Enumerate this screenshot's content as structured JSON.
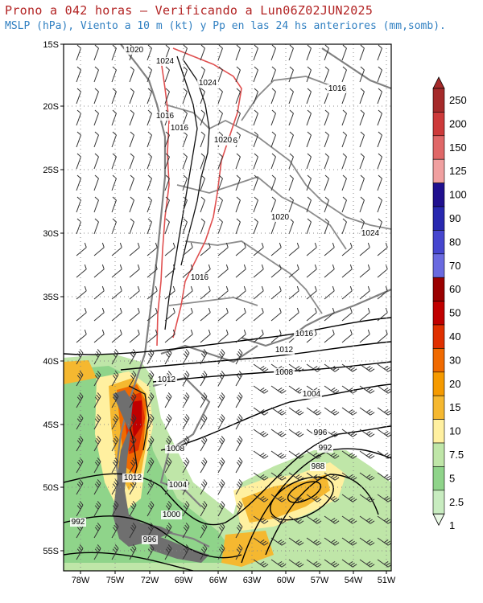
{
  "header": {
    "line1": "Prono a 042 horas — Verificando a Lun06Z02JUN2025",
    "line2": "MSLP (hPa), Viento a 10 m (kt) y Pp en las 24 hs anteriores (mm,somb)."
  },
  "map": {
    "lat_labels": [
      "15S",
      "20S",
      "25S",
      "30S",
      "35S",
      "40S",
      "45S",
      "50S",
      "55S"
    ],
    "lon_labels": [
      "78W",
      "75W",
      "72W",
      "69W",
      "66W",
      "63W",
      "60W",
      "57W",
      "54W",
      "51W"
    ],
    "grid": true,
    "isobar_labels": [
      {
        "text": "1020"
      },
      {
        "text": "1024"
      },
      {
        "text": "1024"
      },
      {
        "text": "1016"
      },
      {
        "text": "1016"
      },
      {
        "text": "1016"
      },
      {
        "text": "1020"
      },
      {
        "text": "1020"
      },
      {
        "text": "1024"
      },
      {
        "text": "1016"
      },
      {
        "text": "1016"
      },
      {
        "text": "1012"
      },
      {
        "text": "1008"
      },
      {
        "text": "1004"
      },
      {
        "text": "1016"
      },
      {
        "text": "1012"
      },
      {
        "text": "996"
      },
      {
        "text": "992"
      },
      {
        "text": "988"
      },
      {
        "text": "1008"
      },
      {
        "text": "1012"
      },
      {
        "text": "1004"
      },
      {
        "text": "1000"
      },
      {
        "text": "992"
      },
      {
        "text": "996"
      }
    ]
  },
  "colorbar": {
    "levels": [
      "250",
      "200",
      "150",
      "125",
      "100",
      "90",
      "80",
      "70",
      "60",
      "50",
      "40",
      "30",
      "20",
      "15",
      "10",
      "7.5",
      "5",
      "2.5",
      "1"
    ],
    "colors": [
      "#a52a2a",
      "#cd3a3a",
      "#e06868",
      "#f0a0a0",
      "#20108f",
      "#2828b0",
      "#4646cf",
      "#6a6ae0",
      "#9a0000",
      "#c00000",
      "#e03000",
      "#f06a00",
      "#f59a00",
      "#f5b830",
      "#fff0a0",
      "#bfe6a8",
      "#8fd48a",
      "#c8ecc0",
      "#e8f8e4"
    ]
  }
}
